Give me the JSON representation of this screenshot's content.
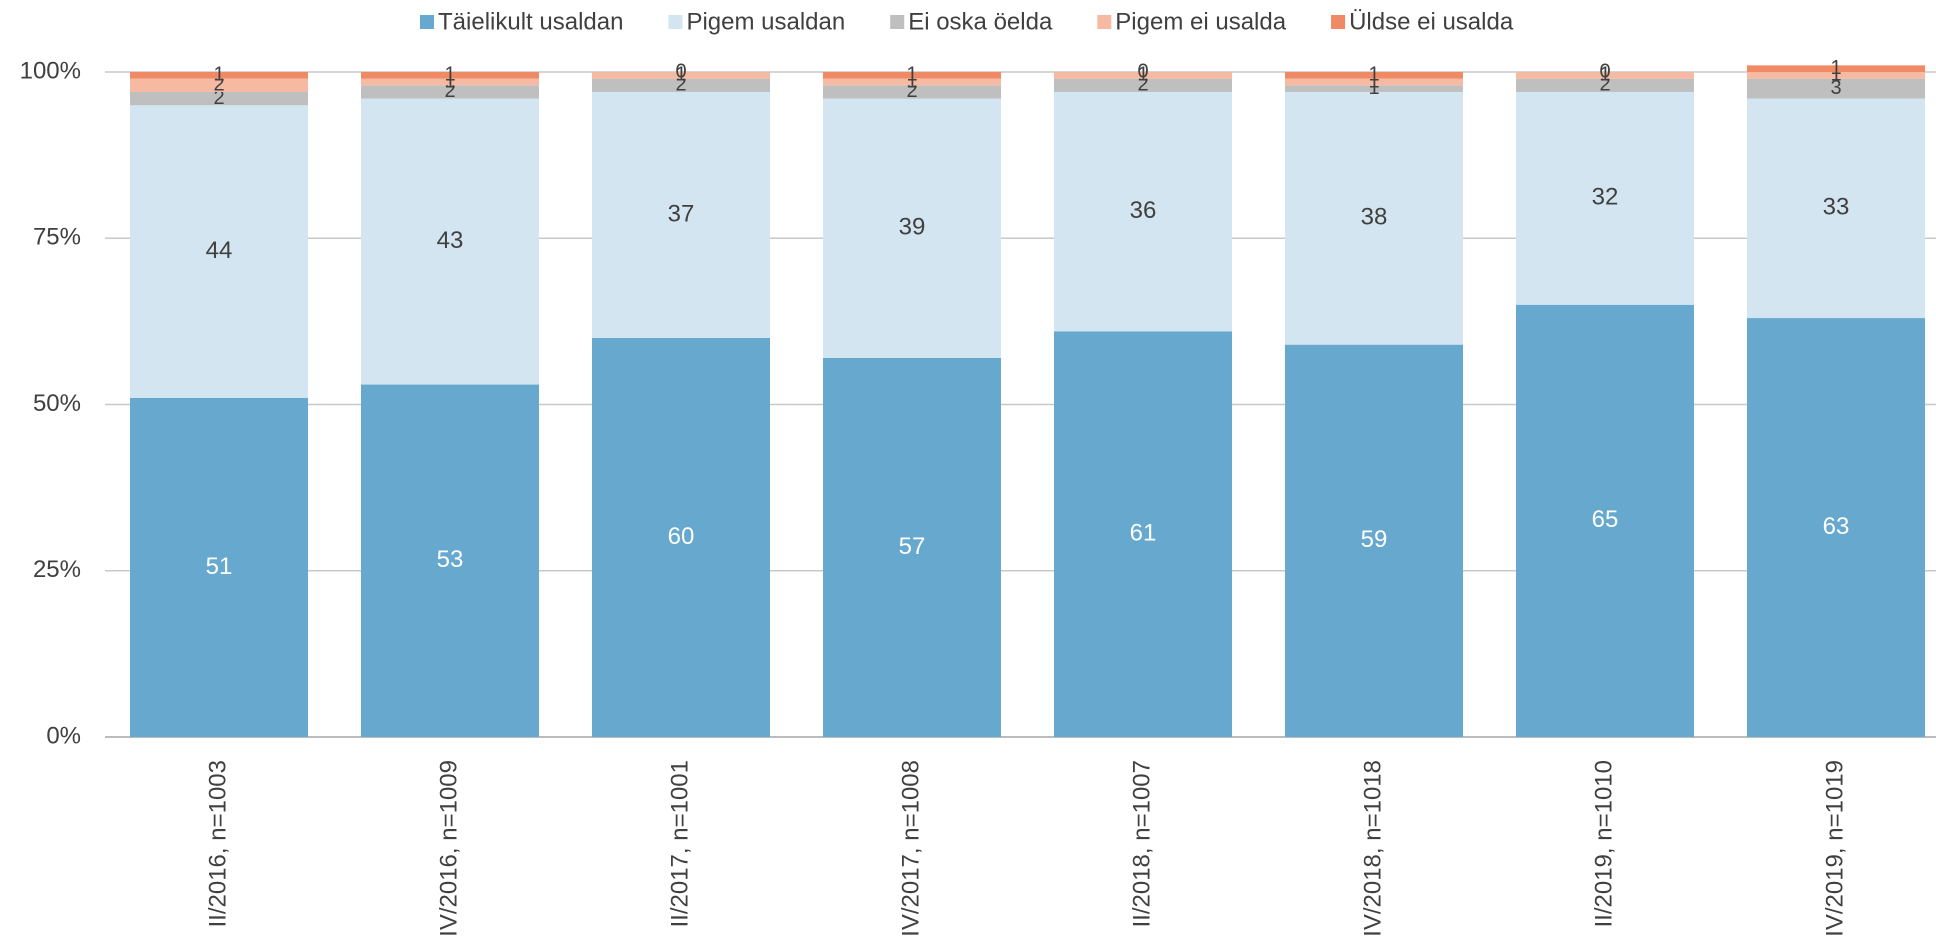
{
  "chart_data": {
    "type": "stacked_bar",
    "categories": [
      "II/2016, n=1003",
      "IV/2016, n=1009",
      "II/2017, n=1001",
      "IV/2017, n=1008",
      "II/2018, n=1007",
      "IV/2018, n=1018",
      "II/2019, n=1010",
      "IV/2019, n=1019"
    ],
    "series": [
      {
        "name": "Täielikult usaldan",
        "color": "#67a8cf",
        "values": [
          51,
          53,
          60,
          57,
          61,
          59,
          65,
          63
        ]
      },
      {
        "name": "Pigem usaldan",
        "color": "#d2e5f0",
        "values": [
          44,
          43,
          37,
          39,
          36,
          38,
          32,
          33
        ]
      },
      {
        "name": "Ei oska öelda",
        "color": "#bfbfbf",
        "values": [
          2,
          2,
          2,
          2,
          2,
          1,
          2,
          3
        ]
      },
      {
        "name": "Pigem ei usalda",
        "color": "#f6b9a1",
        "values": [
          2,
          1,
          1,
          1,
          1,
          1,
          1,
          1
        ]
      },
      {
        "name": "Üldse ei usalda",
        "color": "#f08a64",
        "values": [
          1,
          1,
          0,
          1,
          0,
          1,
          0,
          1
        ]
      }
    ],
    "ylim": [
      0,
      100
    ],
    "yticks": [
      {
        "value": 0,
        "label": "0%"
      },
      {
        "value": 25,
        "label": "25%"
      },
      {
        "value": 50,
        "label": "50%"
      },
      {
        "value": 75,
        "label": "75%"
      },
      {
        "value": 100,
        "label": "100%"
      }
    ],
    "grid": true,
    "legend": "top"
  }
}
